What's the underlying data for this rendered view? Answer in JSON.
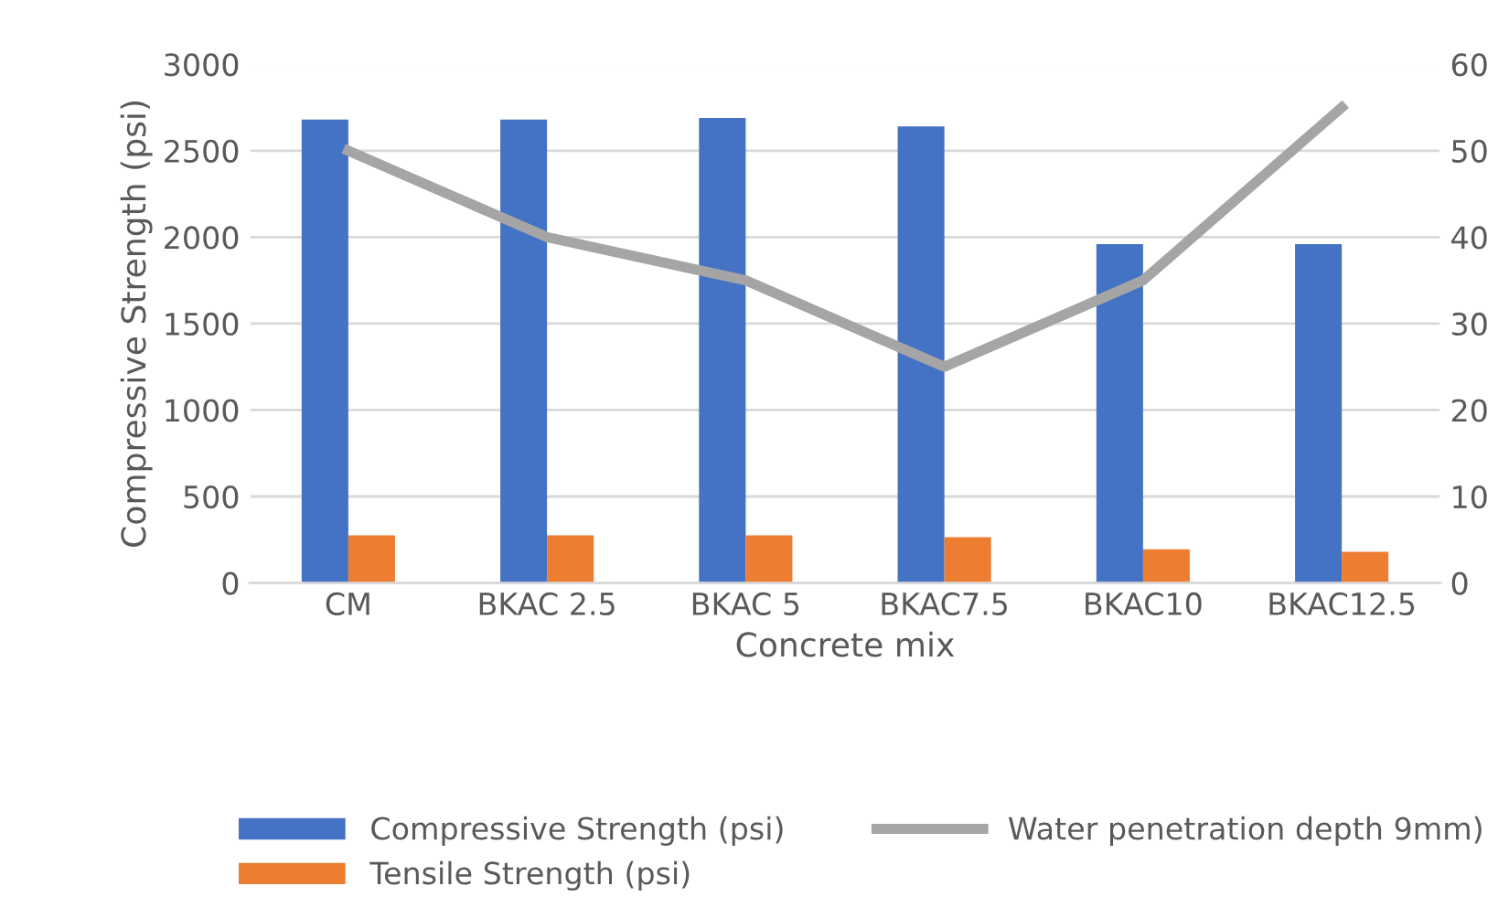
{
  "chart_data": {
    "type": "bar",
    "xlabel": "Concrete mix",
    "ylabel": "Compressive Strength (psi)",
    "categories": [
      "CM",
      "BKAC 2.5",
      "BKAC 5",
      "BKAC7.5",
      "BKAC10",
      "BKAC12.5"
    ],
    "series": [
      {
        "name": "Compressive Strength (psi)",
        "color": "#4472c4",
        "values": [
          2680,
          2680,
          2690,
          2640,
          1960,
          1960
        ]
      },
      {
        "name": "Tensile Strength (psi)",
        "color": "#ed7d31",
        "values": [
          275,
          275,
          275,
          265,
          195,
          180
        ]
      },
      {
        "name": "Water penetration depth 9mm)",
        "type": "line",
        "axis": "y2",
        "color": "#a5a5a5",
        "values": [
          50,
          40,
          35,
          25,
          35,
          55
        ]
      }
    ],
    "ylim": [
      0,
      3000
    ],
    "yticks": [
      0,
      500,
      1000,
      1500,
      2000,
      2500,
      3000
    ],
    "y2lim": [
      0,
      60
    ],
    "y2ticks": [
      0,
      10,
      20,
      30,
      40,
      50,
      60
    ],
    "grid": "y",
    "legend": "bottom",
    "marker": "none",
    "line_style": "solid"
  }
}
